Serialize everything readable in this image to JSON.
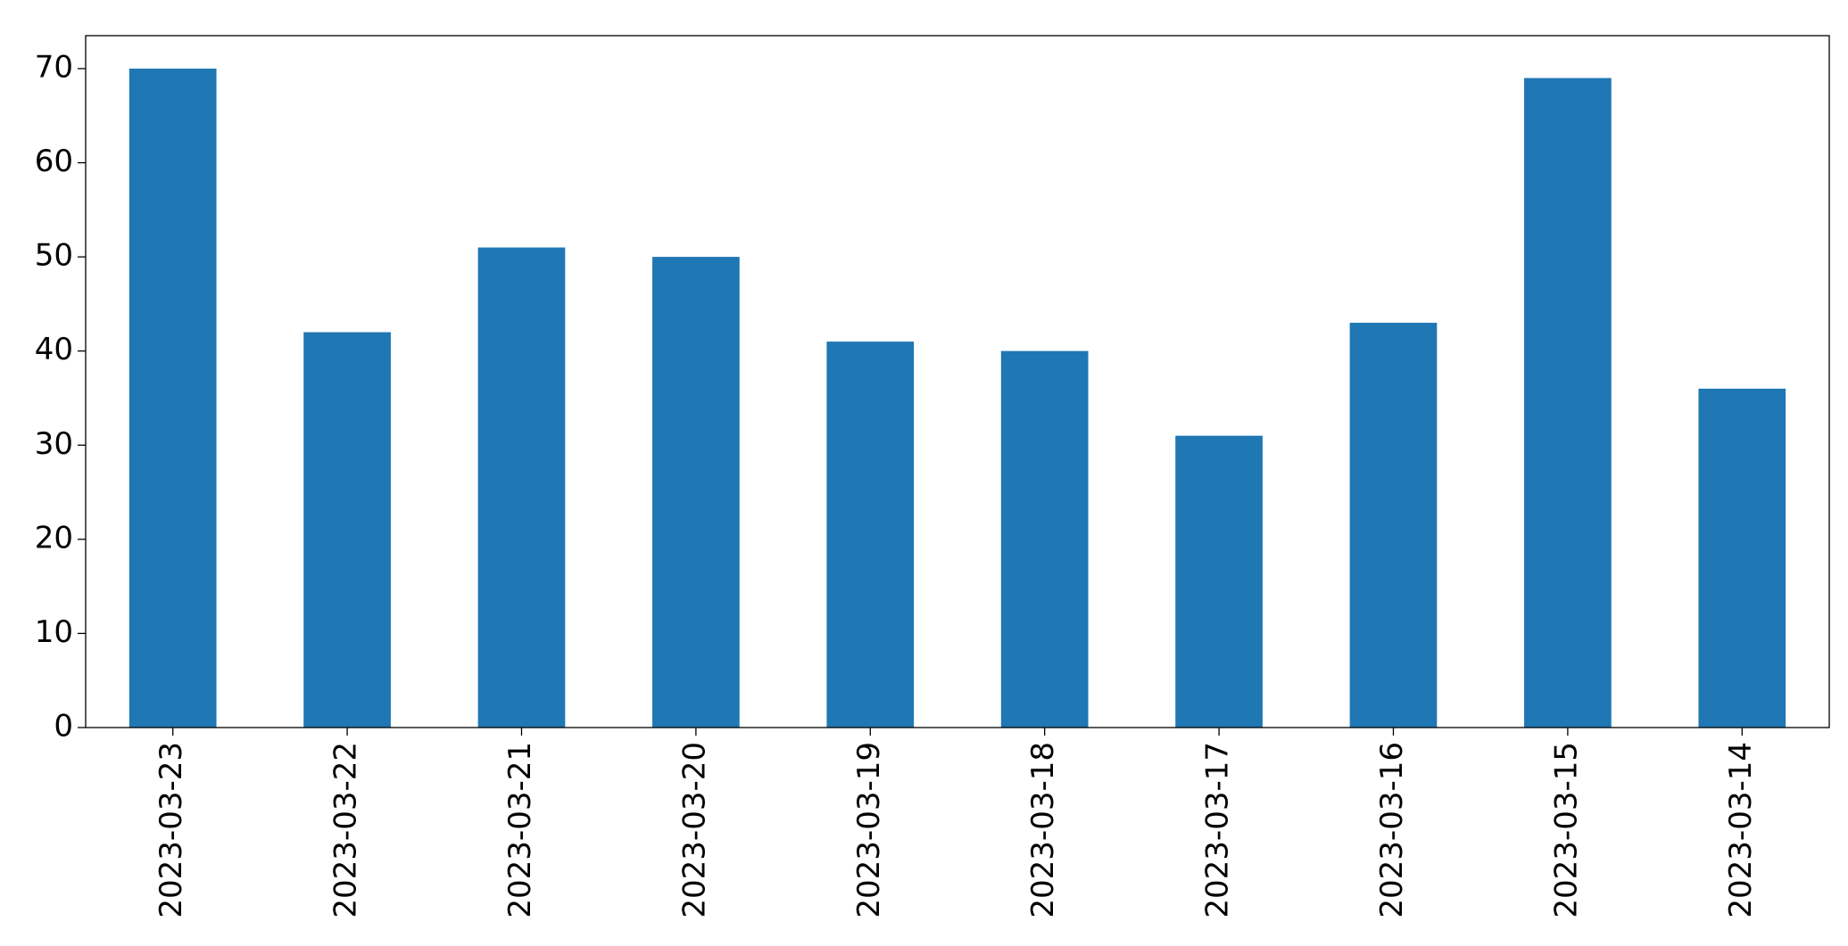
{
  "chart_data": {
    "type": "bar",
    "categories": [
      "2023-03-23",
      "2023-03-22",
      "2023-03-21",
      "2023-03-20",
      "2023-03-19",
      "2023-03-18",
      "2023-03-17",
      "2023-03-16",
      "2023-03-15",
      "2023-03-14"
    ],
    "values": [
      70,
      42,
      51,
      50,
      41,
      40,
      31,
      43,
      69,
      36
    ],
    "color": "#1f77b4",
    "ylim": [
      0,
      73.5
    ],
    "yticks": [
      0,
      10,
      20,
      30,
      40,
      50,
      60,
      70
    ],
    "grid": false
  }
}
